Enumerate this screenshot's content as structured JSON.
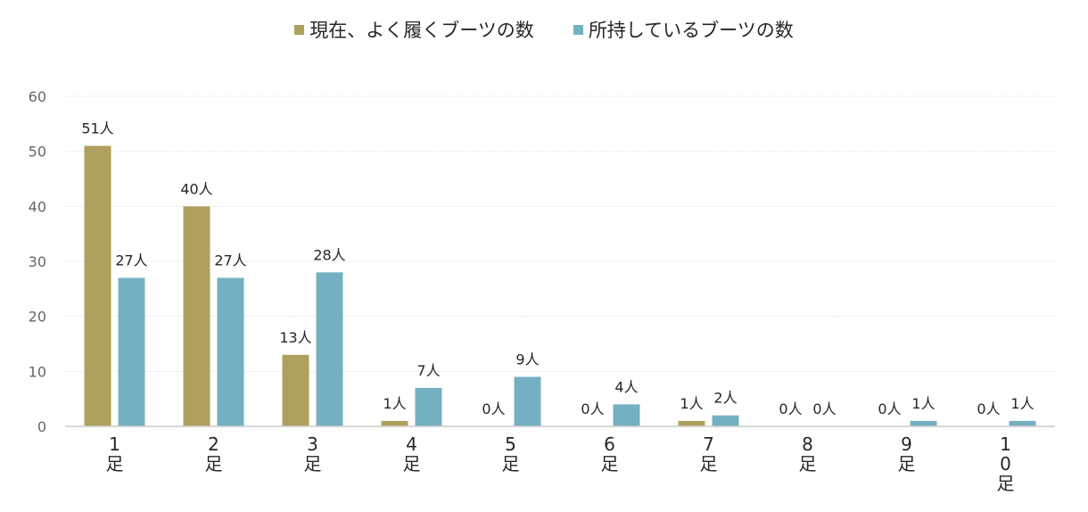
{
  "chart_data": {
    "type": "bar",
    "categories": [
      "1足",
      "2足",
      "3足",
      "4足",
      "5足",
      "6足",
      "7足",
      "8足",
      "9足",
      "10足"
    ],
    "series": [
      {
        "name": "現在、よく履くブーツの数",
        "values": [
          51,
          40,
          13,
          1,
          0,
          0,
          1,
          0,
          0,
          0
        ],
        "color": "#b0a05e"
      },
      {
        "name": "所持しているブーツの数",
        "values": [
          27,
          27,
          28,
          7,
          9,
          4,
          2,
          0,
          1,
          1
        ],
        "color": "#74b0c1"
      }
    ],
    "value_suffix": "人",
    "ylim": [
      0,
      60
    ],
    "yticks": [
      0,
      10,
      20,
      30,
      40,
      50,
      60
    ],
    "grid": true,
    "legend_position": "top-center",
    "title": "",
    "xlabel": "",
    "ylabel": ""
  }
}
